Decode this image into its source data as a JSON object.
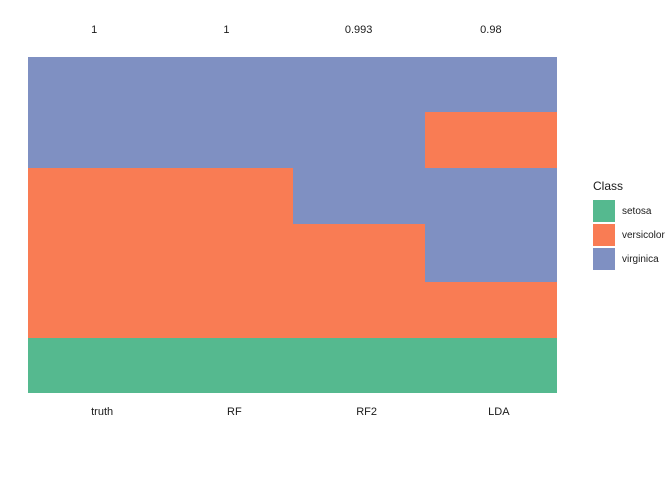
{
  "chart_data": {
    "type": "bar",
    "subtype": "stacked-class-distribution-columns",
    "title": "",
    "categories": [
      "truth",
      "RF",
      "RF2",
      "LDA"
    ],
    "top_labels": [
      "1",
      "1",
      "0.993",
      "0.98"
    ],
    "classes": [
      "setosa",
      "versicolor",
      "virginica"
    ],
    "colors": {
      "setosa": "#55B98F",
      "versicolor": "#F97C54",
      "virginica": "#7F90C2"
    },
    "legend_position": "right",
    "grid": false,
    "columns": [
      {
        "name": "truth",
        "top_label": "1",
        "segments": [
          {
            "class": "virginica",
            "fraction": 0.33
          },
          {
            "class": "versicolor",
            "fraction": 0.505
          },
          {
            "class": "setosa",
            "fraction": 0.165
          }
        ]
      },
      {
        "name": "RF",
        "top_label": "1",
        "segments": [
          {
            "class": "virginica",
            "fraction": 0.33
          },
          {
            "class": "versicolor",
            "fraction": 0.505
          },
          {
            "class": "setosa",
            "fraction": 0.165
          }
        ]
      },
      {
        "name": "RF2",
        "top_label": "0.993",
        "segments": [
          {
            "class": "virginica",
            "fraction": 0.497
          },
          {
            "class": "versicolor",
            "fraction": 0.338
          },
          {
            "class": "setosa",
            "fraction": 0.165
          }
        ]
      },
      {
        "name": "LDA",
        "top_label": "0.98",
        "segments": [
          {
            "class": "virginica",
            "fraction": 0.164
          },
          {
            "class": "versicolor",
            "fraction": 0.167
          },
          {
            "class": "virginica",
            "fraction": 0.339
          },
          {
            "class": "versicolor",
            "fraction": 0.165
          },
          {
            "class": "setosa",
            "fraction": 0.165
          }
        ]
      }
    ]
  },
  "legend": {
    "title": "Class",
    "items": [
      {
        "label": "setosa",
        "color": "#55B98F"
      },
      {
        "label": "versicolor",
        "color": "#F97C54"
      },
      {
        "label": "virginica",
        "color": "#7F90C2"
      }
    ]
  }
}
